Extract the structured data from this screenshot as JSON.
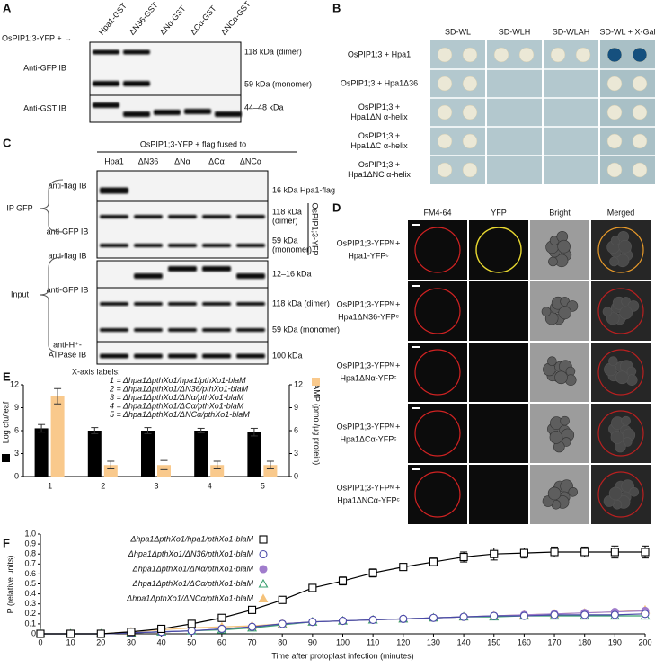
{
  "panels": {
    "A": {
      "label": "A",
      "prefix": "OsPIP1;3-YFP + →",
      "lanes": [
        "Hpa1-GST",
        "ΔN36-GST",
        "ΔNα-GST",
        "ΔCα-GST",
        "ΔNCα-GST"
      ],
      "blots": [
        {
          "name": "Anti-GFP IB",
          "sizes": [
            "118 kDa (dimer)",
            "59 kDa (monomer)"
          ]
        },
        {
          "name": "Anti-GST IB",
          "sizes": [
            "44–48 kDa"
          ]
        }
      ]
    },
    "B": {
      "label": "B",
      "media": [
        "SD-WL",
        "SD-WLH",
        "SD-WLAH",
        "SD-WL + X-Gal"
      ],
      "rows": [
        [
          "OsPIP1;3 + Hpa1"
        ],
        [
          "OsPIP1;3 + Hpa1Δ36"
        ],
        [
          "OsPIP1;3 +",
          "Hpa1ΔN α-helix"
        ],
        [
          "OsPIP1;3 +",
          "Hpa1ΔC α-helix"
        ],
        [
          "OsPIP1;3 +",
          "Hpa1ΔNC α-helix"
        ]
      ]
    },
    "C": {
      "label": "C",
      "title": "OsPIP1;3-YFP + flag fused to",
      "lanes": [
        "Hpa1",
        "ΔN36",
        "ΔNα",
        "ΔCα",
        "ΔNCα"
      ],
      "groups": [
        "IP GFP",
        "Input"
      ],
      "side_label": "OsPIP1;3-YFP",
      "blots": [
        {
          "name": [
            "anti-flag IB"
          ],
          "sizes": [
            "16 kDa Hpa1-flag"
          ]
        },
        {
          "name": [
            "anti-GFP IB"
          ],
          "sizes": [
            "118 kDa",
            "(dimer)",
            "59 kDa",
            "(monomer)"
          ]
        },
        {
          "name": [
            "anti-flag IB"
          ],
          "sizes": [
            "12–16 kDa"
          ]
        },
        {
          "name": [
            "anti-GFP IB"
          ],
          "sizes": [
            "118 kDa (dimer)",
            "59 kDa (monomer)"
          ]
        },
        {
          "name": [
            "anti-H⁺-",
            "ATPase IB"
          ],
          "sizes": [
            "100 kDa"
          ]
        }
      ]
    },
    "D": {
      "label": "D",
      "columns": [
        "FM4-64",
        "YFP",
        "Bright",
        "Merged"
      ],
      "rows": [
        [
          "OsPIP1;3-YFPᴺ +",
          "Hpa1-YFPᶜ"
        ],
        [
          "OsPIP1;3-YFPᴺ +",
          "Hpa1ΔN36-YFPᶜ"
        ],
        [
          "OsPIP1;3-YFPᴺ +",
          "Hpa1ΔNα-YFPᶜ"
        ],
        [
          "OsPIP1;3-YFPᴺ +",
          "Hpa1ΔCα-YFPᶜ"
        ],
        [
          "OsPIP1;3-YFPᴺ +",
          "Hpa1ΔNCα-YFPᶜ"
        ]
      ]
    }
  },
  "chart_data": [
    {
      "type": "bar",
      "panel_label": "E",
      "y_label": "Log cfu/leaf",
      "y2_label": "cAMP (pmol/μg protein)",
      "notes": [
        "X-axis labels:",
        "1 = Δhpa1ΔpthXo1/hpa1/pthXo1-blaM",
        "2 = Δhpa1ΔpthXo1/ΔN36/pthXo1-blaM",
        "3 = Δhpa1ΔpthXo1/ΔNα/pthXo1-blaM",
        "4 = Δhpa1ΔpthXo1/ΔCα/pthXo1-blaM",
        "5 = Δhpa1ΔpthXo1/ΔNCα/pthXo1-blaM"
      ],
      "categories": [
        "1",
        "2",
        "3",
        "4",
        "5"
      ],
      "series": [
        {
          "color": "#000000",
          "values": [
            6.3,
            6.0,
            6.0,
            6.0,
            5.8
          ],
          "errors": [
            0.5,
            0.4,
            0.4,
            0.3,
            0.5
          ]
        },
        {
          "color": "#f9c98c",
          "axis": "y2",
          "values": [
            10.5,
            1.5,
            1.5,
            1.5,
            1.5
          ],
          "errors": [
            1.0,
            0.5,
            0.6,
            0.5,
            0.5
          ]
        }
      ],
      "ylim": [
        0,
        12
      ],
      "yticks": [
        0,
        3,
        6,
        9,
        12
      ],
      "y2lim": [
        0,
        12
      ],
      "y2ticks": [
        0,
        3,
        6,
        9,
        12
      ]
    },
    {
      "type": "line",
      "panel_label": "F",
      "y_label": "P (relative units)",
      "x_label": "Time after protoplast infection (minutes)",
      "x": [
        0,
        10,
        20,
        30,
        40,
        50,
        60,
        70,
        80,
        90,
        100,
        110,
        120,
        130,
        140,
        150,
        160,
        170,
        180,
        190,
        200
      ],
      "series": [
        {
          "name": "Δhpa1ΔpthXo1/hpa1/pthXo1-blaM",
          "color": "#000000",
          "marker": "square",
          "filled": false,
          "values": [
            0,
            0,
            0,
            0.02,
            0.05,
            0.1,
            0.16,
            0.24,
            0.34,
            0.46,
            0.53,
            0.61,
            0.67,
            0.72,
            0.77,
            0.8,
            0.81,
            0.82,
            0.82,
            0.82,
            0.82
          ],
          "errors": [
            0,
            0,
            0,
            0.01,
            0.01,
            0.01,
            0.02,
            0.02,
            0.03,
            0.03,
            0.04,
            0.04,
            0.03,
            0.04,
            0.05,
            0.06,
            0.05,
            0.05,
            0.05,
            0.06,
            0.06
          ]
        },
        {
          "name": "Δhpa1ΔpthXo1/ΔN36/pthXo1-blaM",
          "color": "#4a4aa8",
          "marker": "circle",
          "filled": false,
          "values": [
            0,
            0,
            0,
            0.01,
            0.02,
            0.03,
            0.05,
            0.07,
            0.1,
            0.12,
            0.13,
            0.14,
            0.15,
            0.16,
            0.17,
            0.18,
            0.18,
            0.19,
            0.19,
            0.19,
            0.2
          ]
        },
        {
          "name": "Δhpa1ΔpthXo1/ΔNα/pthXo1-blaM",
          "color": "#a07ccc",
          "marker": "circle",
          "filled": true,
          "values": [
            0,
            0,
            0,
            0.01,
            0.02,
            0.03,
            0.05,
            0.07,
            0.1,
            0.12,
            0.13,
            0.14,
            0.15,
            0.16,
            0.17,
            0.18,
            0.19,
            0.2,
            0.21,
            0.22,
            0.23
          ]
        },
        {
          "name": "Δhpa1ΔpthXo1/ΔCα/pthXo1-blaM",
          "color": "#3aa070",
          "marker": "triangle",
          "filled": false,
          "values": [
            0,
            0,
            0,
            0.01,
            0.02,
            0.03,
            0.04,
            0.06,
            0.09,
            0.12,
            0.13,
            0.14,
            0.15,
            0.16,
            0.17,
            0.17,
            0.18,
            0.18,
            0.18,
            0.18,
            0.18
          ]
        },
        {
          "name": "Δhpa1ΔpthXo1/ΔNCα/pthXo1-blaM",
          "color": "#f5c27a",
          "marker": "triangle",
          "filled": true,
          "values": [
            0,
            0,
            0,
            0.02,
            0.04,
            0.06,
            0.07,
            0.08,
            0.1,
            0.12,
            0.13,
            0.14,
            0.15,
            0.16,
            0.17,
            0.18,
            0.19,
            0.2,
            0.21,
            0.22,
            0.24
          ]
        }
      ],
      "xlim": [
        0,
        200
      ],
      "xticks": [
        0,
        10,
        20,
        30,
        40,
        50,
        60,
        70,
        80,
        90,
        100,
        110,
        120,
        130,
        140,
        150,
        160,
        170,
        180,
        190,
        200
      ],
      "ylim": [
        0,
        1
      ],
      "yticks": [
        0,
        0.1,
        0.2,
        0.3,
        0.4,
        0.5,
        0.6,
        0.7,
        0.8,
        0.9,
        {
          "value": 1,
          "label": "1.0"
        }
      ]
    }
  ]
}
